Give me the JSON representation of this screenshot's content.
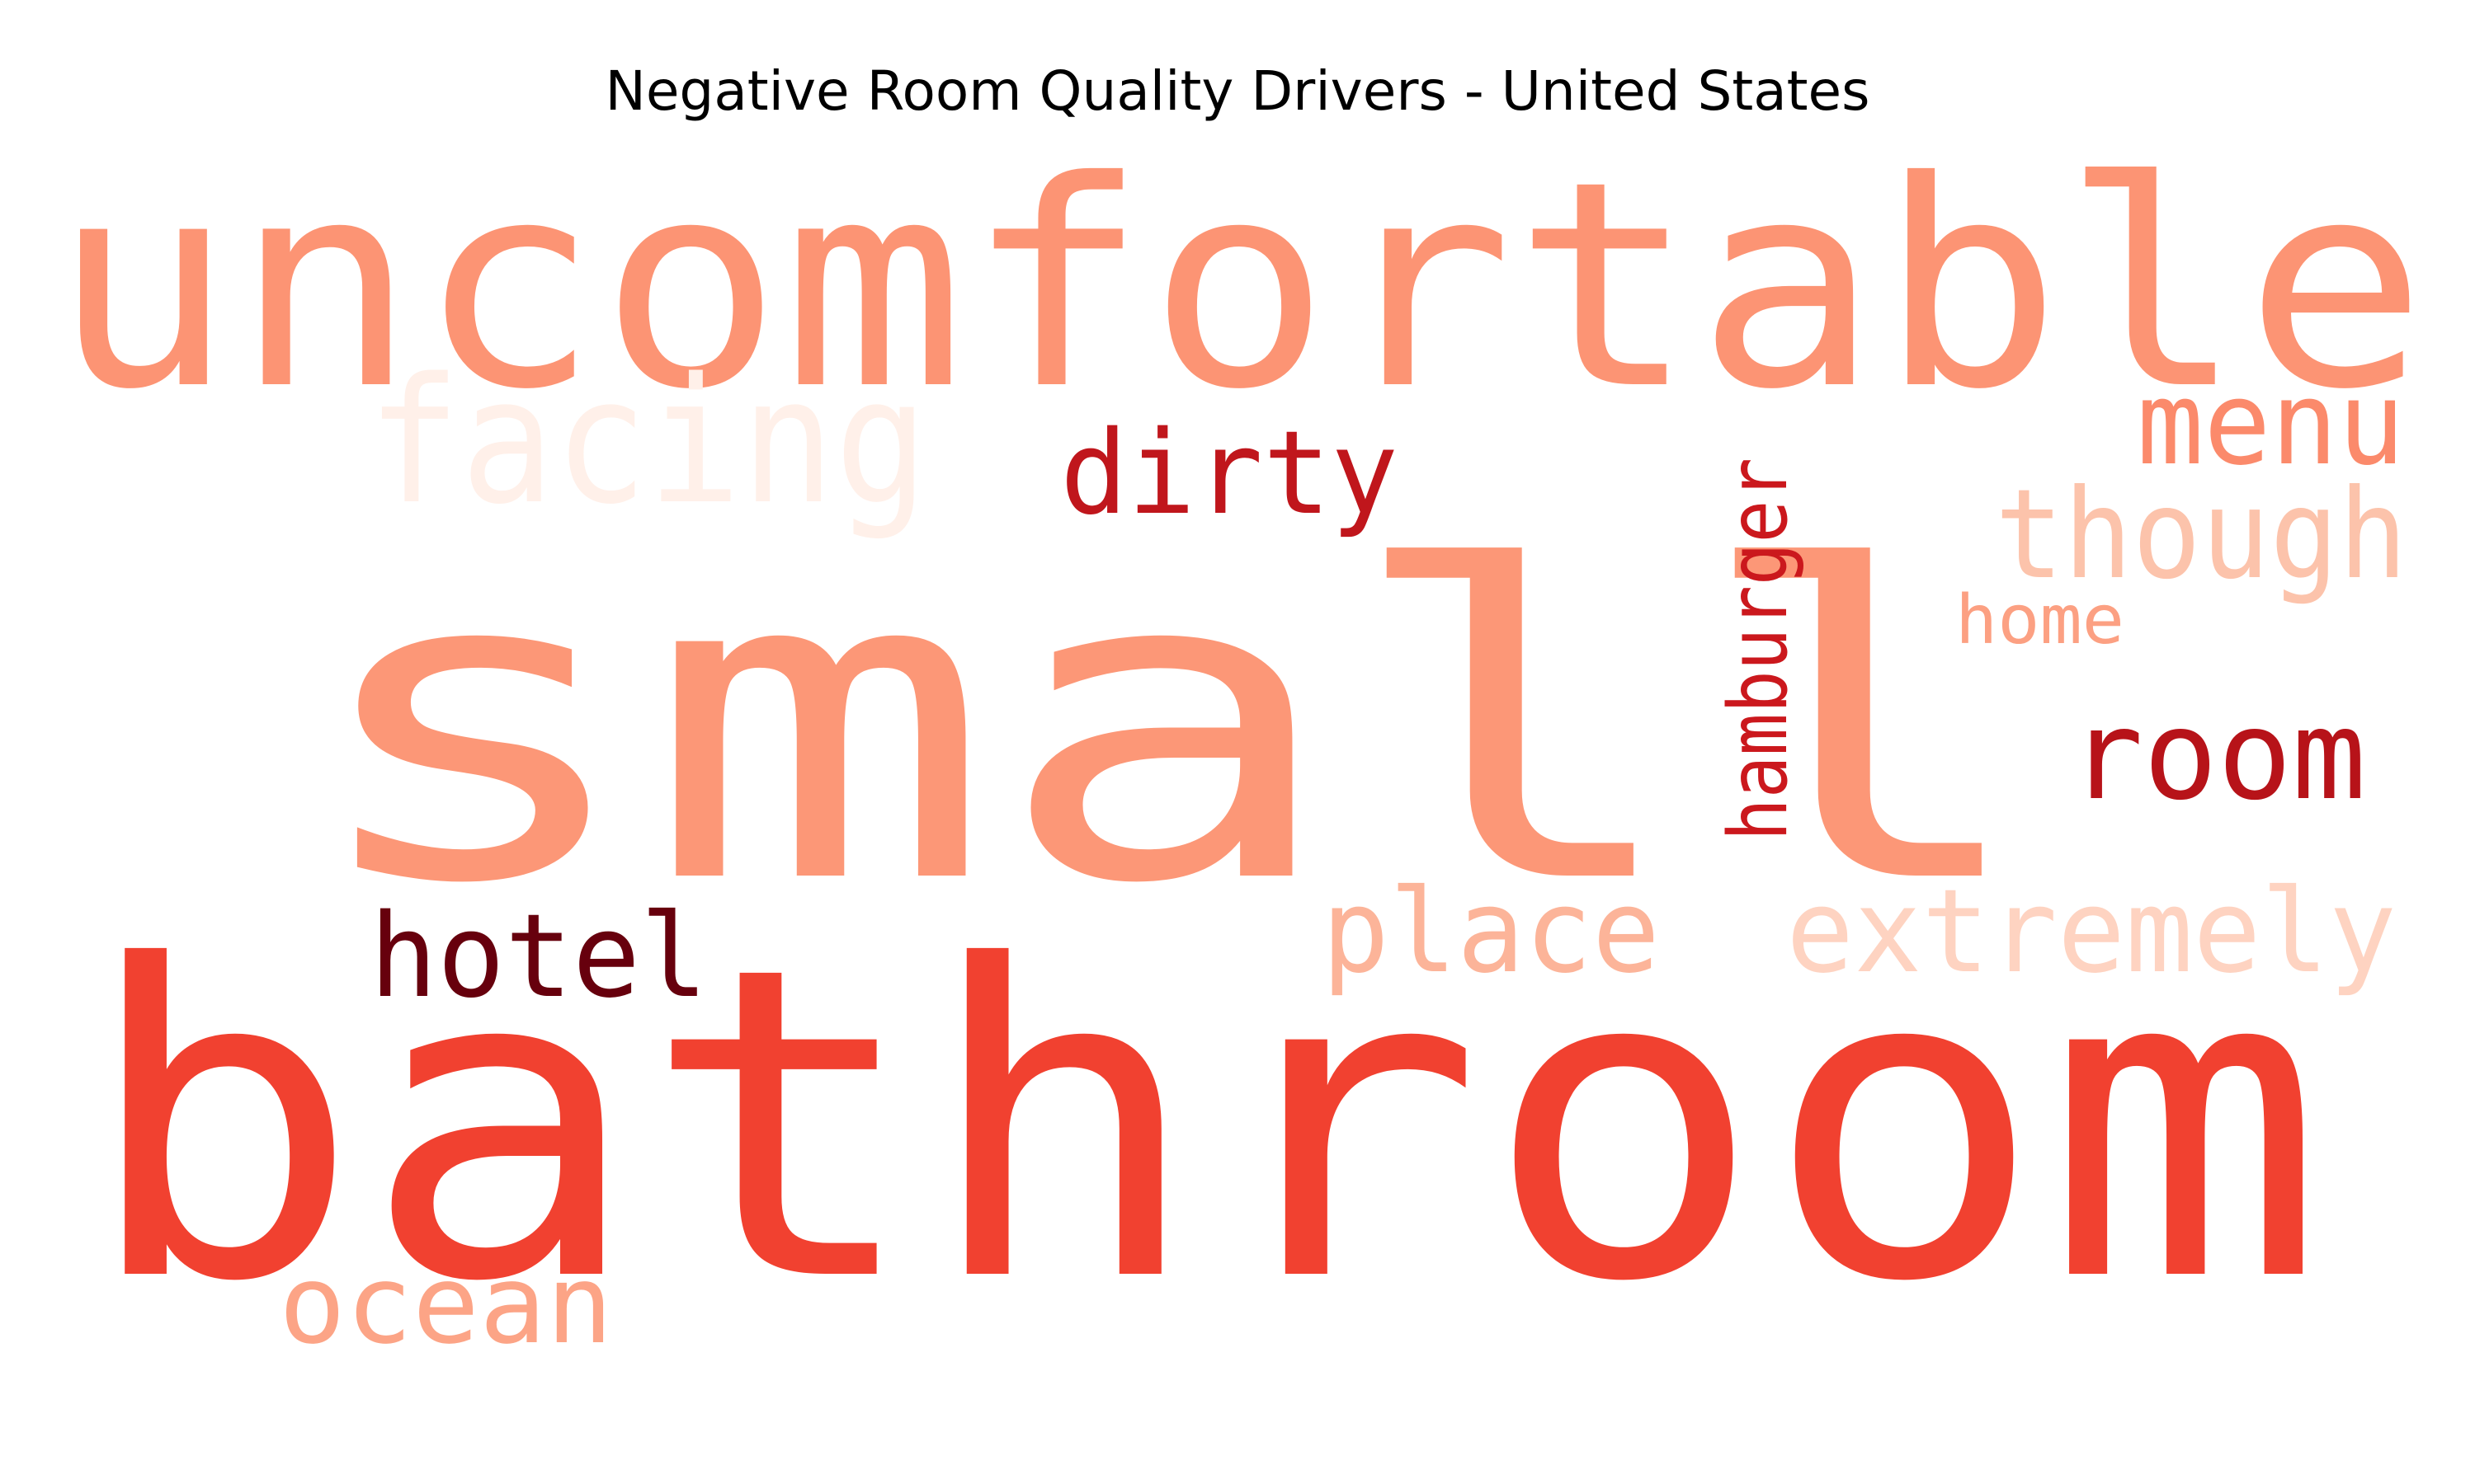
{
  "chart_data": {
    "type": "wordcloud",
    "title": "Negative Room Quality Drivers - United States",
    "colormap": "Reds",
    "words": [
      {
        "text": "small",
        "weight": 1.0,
        "color": "#fc9777"
      },
      {
        "text": "bathroom",
        "weight": 0.95,
        "color": "#f14130"
      },
      {
        "text": "uncomfortable",
        "weight": 0.7,
        "color": "#fc9474"
      },
      {
        "text": "room",
        "weight": 0.3,
        "color": "#b71319"
      },
      {
        "text": "dirty",
        "weight": 0.3,
        "color": "#c0161c"
      },
      {
        "text": "hotel",
        "weight": 0.3,
        "color": "#67000d"
      },
      {
        "text": "facing",
        "weight": 0.3,
        "color": "#fff0e9"
      },
      {
        "text": "extremely",
        "weight": 0.3,
        "color": "#fed3c1"
      },
      {
        "text": "though",
        "weight": 0.28,
        "color": "#fcc3ab"
      },
      {
        "text": "place",
        "weight": 0.28,
        "color": "#fcb499"
      },
      {
        "text": "ocean",
        "weight": 0.28,
        "color": "#fca486"
      },
      {
        "text": "menu",
        "weight": 0.26,
        "color": "#fb8a6b"
      },
      {
        "text": "hamburger",
        "weight": 0.22,
        "color": "#cb181d"
      },
      {
        "text": "home",
        "weight": 0.17,
        "color": "#fca082"
      }
    ]
  }
}
